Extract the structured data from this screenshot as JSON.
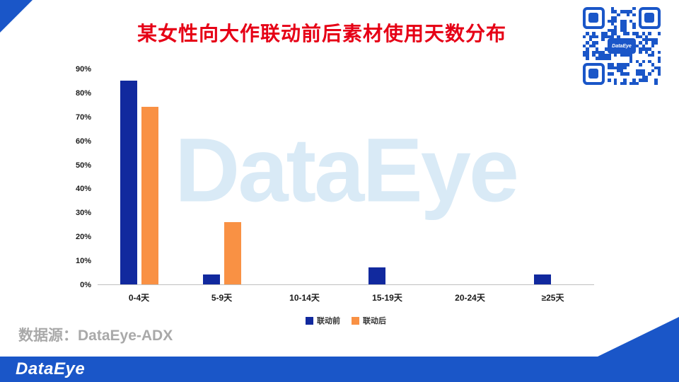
{
  "title": "某女性向大作联动前后素材使用天数分布",
  "source": "数据源：DataEye-ADX",
  "footer_logo": "DataEye",
  "watermark": "DataEye",
  "qr": {
    "label": "DataEye",
    "color": "#1a56c8"
  },
  "colors": {
    "title": "#e60016",
    "accent_blue": "#1a56c8",
    "series_before": "#11299e",
    "series_after": "#f99144",
    "watermark": "#d9eaf6",
    "source_text": "#a9a9a9"
  },
  "chart_data": {
    "type": "bar",
    "categories": [
      "0-4天",
      "5-9天",
      "10-14天",
      "15-19天",
      "20-24天",
      "≥25天"
    ],
    "series": [
      {
        "name": "联动前",
        "color": "#11299e",
        "values": [
          85,
          4,
          0,
          7,
          0,
          4
        ]
      },
      {
        "name": "联动后",
        "color": "#f99144",
        "values": [
          74,
          26,
          0,
          0,
          0,
          0
        ]
      }
    ],
    "title": "某女性向大作联动前后素材使用天数分布",
    "xlabel": "",
    "ylabel": "",
    "ylim": [
      0,
      90
    ],
    "ytick_step": 10,
    "ytick_format": "percent",
    "grid": false,
    "legend_position": "bottom"
  }
}
